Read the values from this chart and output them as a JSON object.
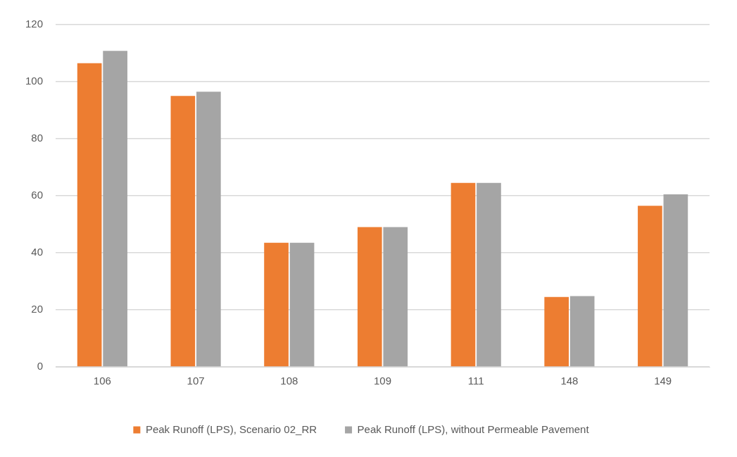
{
  "chart_data": {
    "type": "bar",
    "categories": [
      "106",
      "107",
      "108",
      "109",
      "111",
      "148",
      "149"
    ],
    "series": [
      {
        "name": "Peak Runoff (LPS), Scenario 02_RR",
        "color": "#ed7d31",
        "values": [
          106.5,
          95,
          43.5,
          49,
          64.5,
          24.5,
          56.5
        ]
      },
      {
        "name": "Peak Runoff (LPS), without Permeable Pavement",
        "color": "#a5a5a5",
        "values": [
          110.8,
          96.5,
          43.5,
          49,
          64.5,
          24.8,
          60.5
        ]
      }
    ],
    "ylim": [
      0,
      120
    ],
    "yticks": [
      0,
      20,
      40,
      60,
      80,
      100,
      120
    ],
    "grid": "y",
    "legend": "bottom"
  }
}
